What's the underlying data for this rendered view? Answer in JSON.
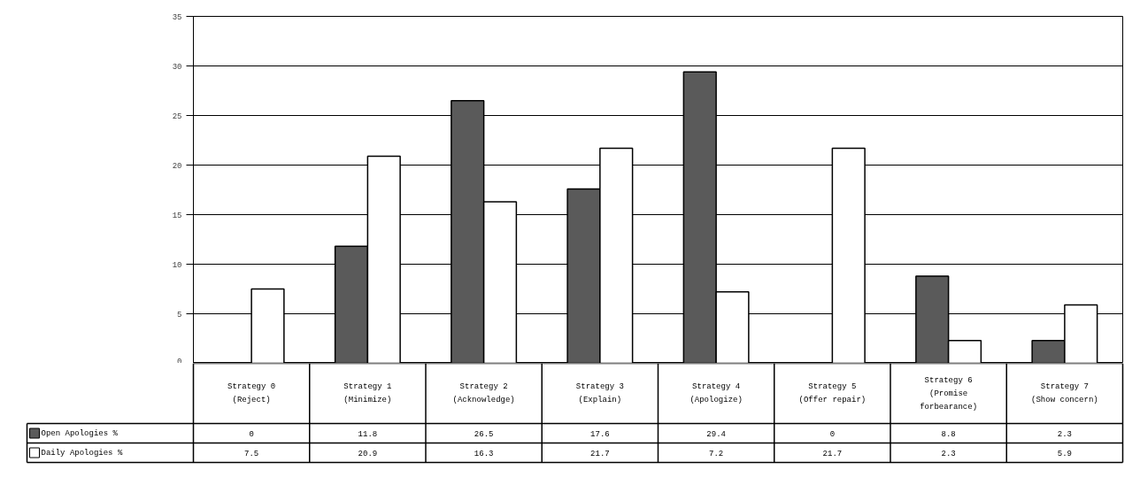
{
  "chart_data": {
    "type": "bar",
    "categories": [
      "Strategy 0\n(Reject)",
      "Strategy 1\n(Minimize)",
      "Strategy 2\n(Acknowledge)",
      "Strategy 3\n(Explain)",
      "Strategy 4\n(Apologize)",
      "Strategy 5\n(Offer repair)",
      "Strategy 6\n(Promise\nforbearance)",
      "Strategy 7\n(Show concern)"
    ],
    "series": [
      {
        "name": "Open Apologies %",
        "color": "#5a5a5a",
        "values": [
          0,
          11.8,
          26.5,
          17.6,
          29.4,
          0,
          8.8,
          2.3
        ]
      },
      {
        "name": "Daily Apologies %",
        "color": "#ffffff",
        "values": [
          7.5,
          20.9,
          16.3,
          21.7,
          7.2,
          21.7,
          2.3,
          5.9
        ]
      }
    ],
    "ylim": [
      0,
      35
    ],
    "yticks": [
      0,
      5,
      10,
      15,
      20,
      25,
      30,
      35
    ],
    "grid": "y",
    "data_labels": true,
    "legend": "bottom left"
  }
}
